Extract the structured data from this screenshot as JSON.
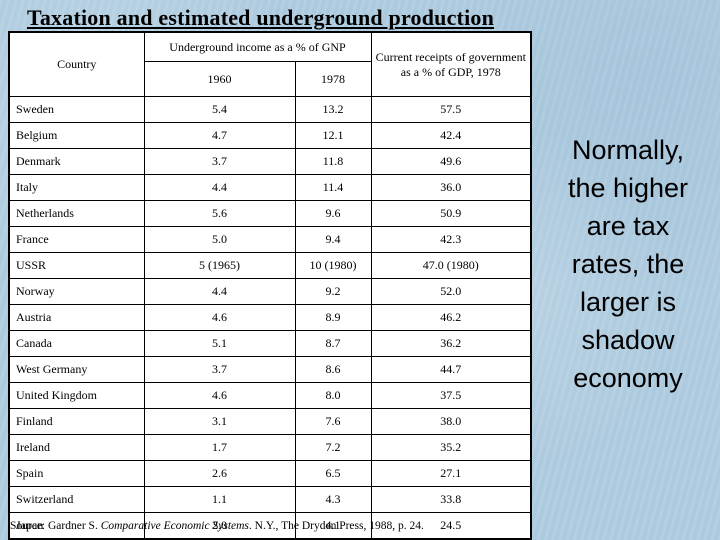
{
  "slide": {
    "title": "Taxation and estimated underground production",
    "side_note": "Normally,\nthe higher\nare tax\nrates, the\nlarger is\nshadow\neconomy",
    "source": {
      "prefix": "Source: Gardner S. ",
      "italic": "Comparative Economic Systems",
      "suffix": ". N.Y., The Dryden Press, 1988, p. 24."
    }
  },
  "table": {
    "headers": {
      "country": "Country",
      "group": "Underground income as a % of GNP",
      "y1960": "1960",
      "y1978": "1978",
      "receipts": "Current receipts of government as a % of GDP, 1978"
    },
    "rows": [
      {
        "country": "Sweden",
        "y1960": "5.4",
        "y1978": "13.2",
        "receipts": "57.5"
      },
      {
        "country": "Belgium",
        "y1960": "4.7",
        "y1978": "12.1",
        "receipts": "42.4"
      },
      {
        "country": "Denmark",
        "y1960": "3.7",
        "y1978": "11.8",
        "receipts": "49.6"
      },
      {
        "country": "Italy",
        "y1960": "4.4",
        "y1978": "11.4",
        "receipts": "36.0"
      },
      {
        "country": "Netherlands",
        "y1960": "5.6",
        "y1978": "9.6",
        "receipts": "50.9"
      },
      {
        "country": "France",
        "y1960": "5.0",
        "y1978": "9.4",
        "receipts": "42.3"
      },
      {
        "country": "USSR",
        "y1960": "5 (1965)",
        "y1978": "10 (1980)",
        "receipts": "47.0 (1980)"
      },
      {
        "country": "Norway",
        "y1960": "4.4",
        "y1978": "9.2",
        "receipts": "52.0"
      },
      {
        "country": "Austria",
        "y1960": "4.6",
        "y1978": "8.9",
        "receipts": "46.2"
      },
      {
        "country": "Canada",
        "y1960": "5.1",
        "y1978": "8.7",
        "receipts": "36.2"
      },
      {
        "country": "West Germany",
        "y1960": "3.7",
        "y1978": "8.6",
        "receipts": "44.7"
      },
      {
        "country": "United Kingdom",
        "y1960": "4.6",
        "y1978": "8.0",
        "receipts": "37.5"
      },
      {
        "country": "Finland",
        "y1960": "3.1",
        "y1978": "7.6",
        "receipts": "38.0"
      },
      {
        "country": "Ireland",
        "y1960": "1.7",
        "y1978": "7.2",
        "receipts": "35.2"
      },
      {
        "country": "Spain",
        "y1960": "2.6",
        "y1978": "6.5",
        "receipts": "27.1"
      },
      {
        "country": "Switzerland",
        "y1960": "1.1",
        "y1978": "4.3",
        "receipts": "33.8"
      },
      {
        "country": "Japan",
        "y1960": "2.0",
        "y1978": "4.1",
        "receipts": "24.5"
      }
    ]
  },
  "colors": {
    "background": "#afccdf",
    "table_background": "#ffffff",
    "text": "#000000"
  }
}
